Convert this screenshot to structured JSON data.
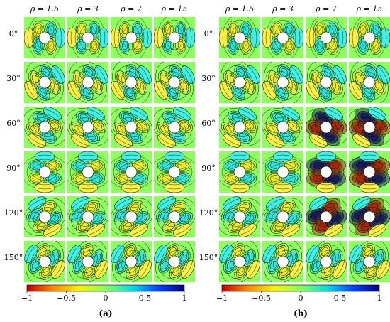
{
  "columns": [
    "ρ = 1.5",
    "ρ = 3",
    "ρ = 7",
    "ρ = 15"
  ],
  "rows": [
    "0°",
    "30°",
    "60°",
    "90°",
    "120°",
    "150°"
  ],
  "colorbar": {
    "ticks": [
      "−1",
      "−0.5",
      "0",
      "0.5",
      "1"
    ],
    "tick_values": [
      -1,
      -0.5,
      0,
      0.5,
      1
    ],
    "colors": [
      "#c00000",
      "#ff8a00",
      "#f4f400",
      "#8aff5a",
      "#00e0e0",
      "#0044ff",
      "#000080"
    ]
  },
  "panels": [
    {
      "caption": "(a)",
      "intensity": [
        [
          0.25,
          0.2,
          0.15,
          0.1
        ],
        [
          0.25,
          0.25,
          0.25,
          0.25
        ],
        [
          0.25,
          0.3,
          0.3,
          0.3
        ],
        [
          0.25,
          0.3,
          0.3,
          0.3
        ],
        [
          0.25,
          0.3,
          0.3,
          0.3
        ],
        [
          0.25,
          0.25,
          0.25,
          0.2
        ]
      ]
    },
    {
      "caption": "(b)",
      "intensity": [
        [
          0.25,
          0.25,
          0.3,
          0.3
        ],
        [
          0.25,
          0.3,
          0.35,
          0.4
        ],
        [
          0.3,
          0.4,
          0.75,
          0.85
        ],
        [
          0.3,
          0.45,
          0.8,
          0.95
        ],
        [
          0.3,
          0.4,
          0.75,
          0.85
        ],
        [
          0.25,
          0.3,
          0.3,
          0.3
        ]
      ]
    }
  ]
}
